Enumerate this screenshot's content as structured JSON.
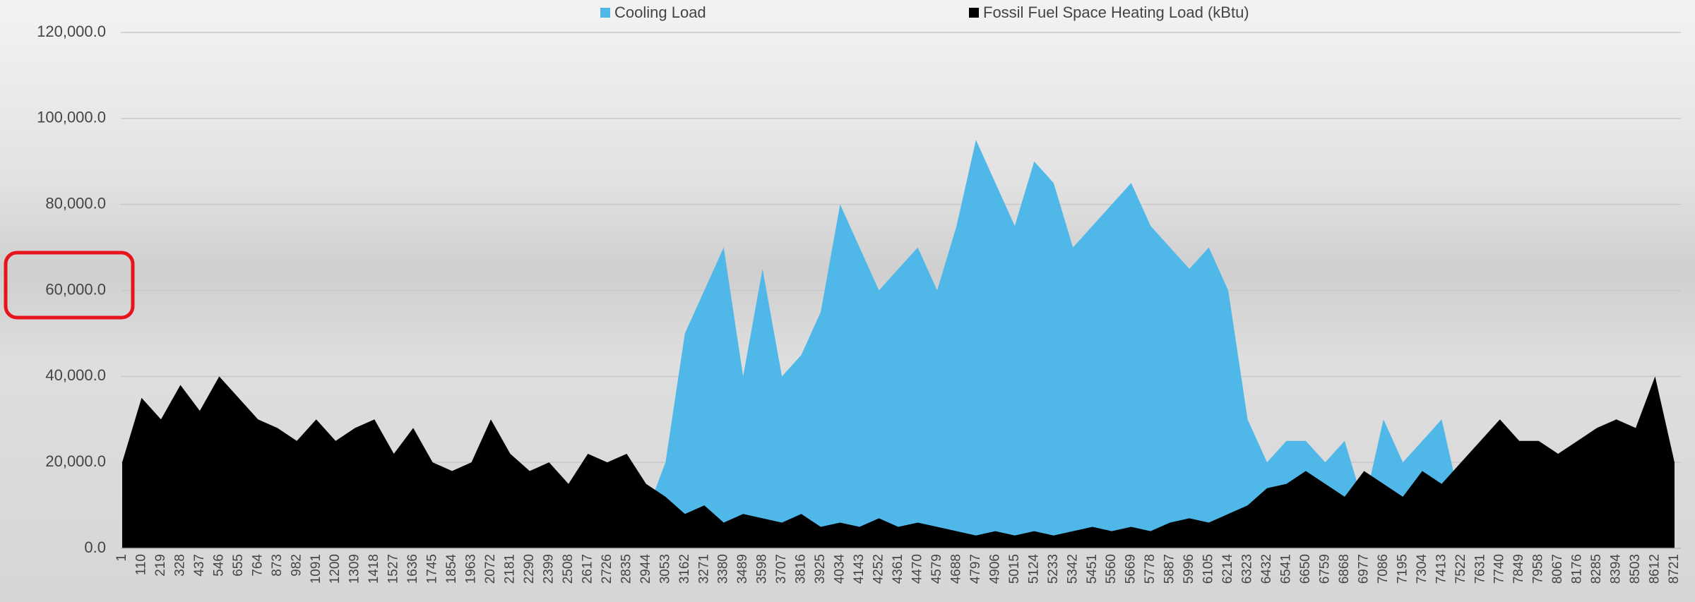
{
  "chart_data": {
    "type": "area",
    "categories": [
      "1",
      "110",
      "219",
      "328",
      "437",
      "546",
      "655",
      "764",
      "873",
      "982",
      "1091",
      "1200",
      "1309",
      "1418",
      "1527",
      "1636",
      "1745",
      "1854",
      "1963",
      "2072",
      "2181",
      "2290",
      "2399",
      "2508",
      "2617",
      "2726",
      "2835",
      "2944",
      "3053",
      "3162",
      "3271",
      "3380",
      "3489",
      "3598",
      "3707",
      "3816",
      "3925",
      "4034",
      "4143",
      "4252",
      "4361",
      "4470",
      "4579",
      "4688",
      "4797",
      "4906",
      "5015",
      "5124",
      "5233",
      "5342",
      "5451",
      "5560",
      "5669",
      "5778",
      "5887",
      "5996",
      "6105",
      "6214",
      "6323",
      "6432",
      "6541",
      "6650",
      "6759",
      "6868",
      "6977",
      "7086",
      "7195",
      "7304",
      "7413",
      "7522",
      "7631",
      "7740",
      "7849",
      "7958",
      "8067",
      "8176",
      "8285",
      "8394",
      "8503",
      "8612",
      "8721"
    ],
    "series": [
      {
        "name": "Cooling Load",
        "color": "#4fb8e8",
        "values": [
          0,
          0,
          0,
          0,
          0,
          0,
          0,
          0,
          0,
          0,
          0,
          0,
          0,
          0,
          0,
          0,
          0,
          0,
          0,
          0,
          0,
          0,
          5000,
          0,
          0,
          15000,
          5000,
          8000,
          20000,
          50000,
          60000,
          70000,
          40000,
          65000,
          40000,
          45000,
          55000,
          80000,
          70000,
          60000,
          65000,
          70000,
          60000,
          75000,
          95000,
          85000,
          75000,
          90000,
          85000,
          70000,
          75000,
          80000,
          85000,
          75000,
          70000,
          65000,
          70000,
          60000,
          30000,
          20000,
          25000,
          25000,
          20000,
          25000,
          10000,
          30000,
          20000,
          25000,
          30000,
          10000,
          0,
          0,
          0,
          0,
          0,
          0,
          0,
          0,
          0,
          0,
          0
        ]
      },
      {
        "name": "Fossil Fuel Space Heating Load (kBtu)",
        "color": "#000000",
        "values": [
          20000,
          35000,
          30000,
          38000,
          32000,
          40000,
          35000,
          30000,
          28000,
          25000,
          30000,
          25000,
          28000,
          30000,
          22000,
          28000,
          20000,
          18000,
          20000,
          30000,
          22000,
          18000,
          20000,
          15000,
          22000,
          20000,
          22000,
          15000,
          12000,
          8000,
          10000,
          6000,
          8000,
          7000,
          6000,
          8000,
          5000,
          6000,
          5000,
          7000,
          5000,
          6000,
          5000,
          4000,
          3000,
          4000,
          3000,
          4000,
          3000,
          4000,
          5000,
          4000,
          5000,
          4000,
          6000,
          7000,
          6000,
          8000,
          10000,
          14000,
          15000,
          18000,
          15000,
          12000,
          18000,
          15000,
          12000,
          18000,
          15000,
          20000,
          25000,
          30000,
          25000,
          25000,
          22000,
          25000,
          28000,
          30000,
          28000,
          40000,
          20000
        ]
      }
    ],
    "ylim": [
      0,
      120000
    ],
    "yticks": [
      {
        "value": 0,
        "label": "0.0"
      },
      {
        "value": 20000,
        "label": "20,000.0"
      },
      {
        "value": 40000,
        "label": "40,000.0"
      },
      {
        "value": 60000,
        "label": "60,000.0"
      },
      {
        "value": 80000,
        "label": "80,000.0"
      },
      {
        "value": 100000,
        "label": "100,000.0"
      },
      {
        "value": 120000,
        "label": "120,000.0"
      }
    ],
    "grid": true
  }
}
